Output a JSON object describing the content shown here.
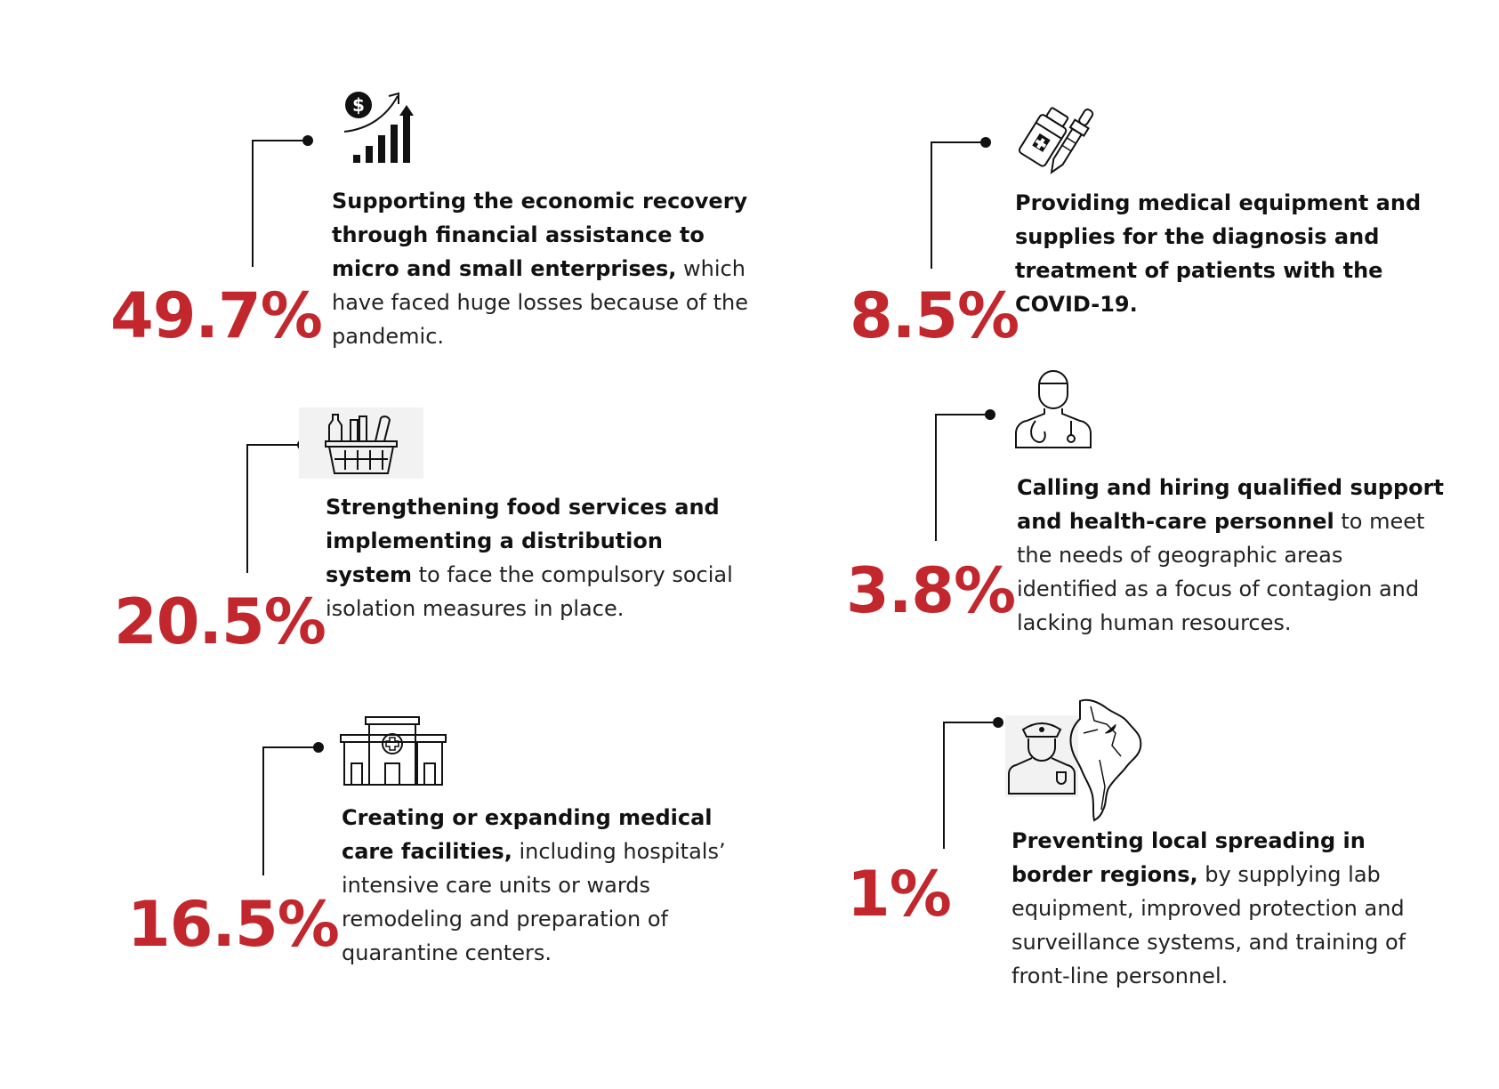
{
  "colors": {
    "accent": "#c1272d",
    "text": "#1a1a1a",
    "line": "#111111"
  },
  "items": [
    {
      "value": "49.7%",
      "bold": "Supporting the economic recovery through financial assistance to micro and small enterprises,",
      "rest": " which have faced huge losses because of the pandemic.",
      "icon": "money-growth-chart-icon",
      "level": 0.497
    },
    {
      "value": "20.5%",
      "bold": "Strengthening food services and implementing a distribution system",
      "rest": " to face the compulsory social isolation measures in place.",
      "icon": "grocery-basket-icon",
      "level": 0.205
    },
    {
      "value": "16.5%",
      "bold": "Creating or expanding medical care facilities,",
      "rest": " including hospitals’ intensive care units or wards remodeling and preparation of quarantine centers.",
      "icon": "hospital-building-icon",
      "level": 0.165
    },
    {
      "value": "8.5%",
      "bold": "Providing medical equipment and supplies for the diagnosis and treatment of patients with the COVID-19.",
      "rest": "",
      "icon": "medicine-bottle-dropper-icon",
      "level": 0.085
    },
    {
      "value": "3.8%",
      "bold": "Calling and hiring qualified support and health-care personnel",
      "rest": " to meet the needs of geographic areas identified as a focus of contagion and lacking human resources.",
      "icon": "doctor-stethoscope-icon",
      "level": 0.038
    },
    {
      "value": "1%",
      "bold": "Preventing local spreading in border regions,",
      "rest": " by supplying lab equipment, improved protection and surveillance systems, and training of front-line personnel.",
      "icon": "police-border-map-icon",
      "level": 0.01
    }
  ]
}
